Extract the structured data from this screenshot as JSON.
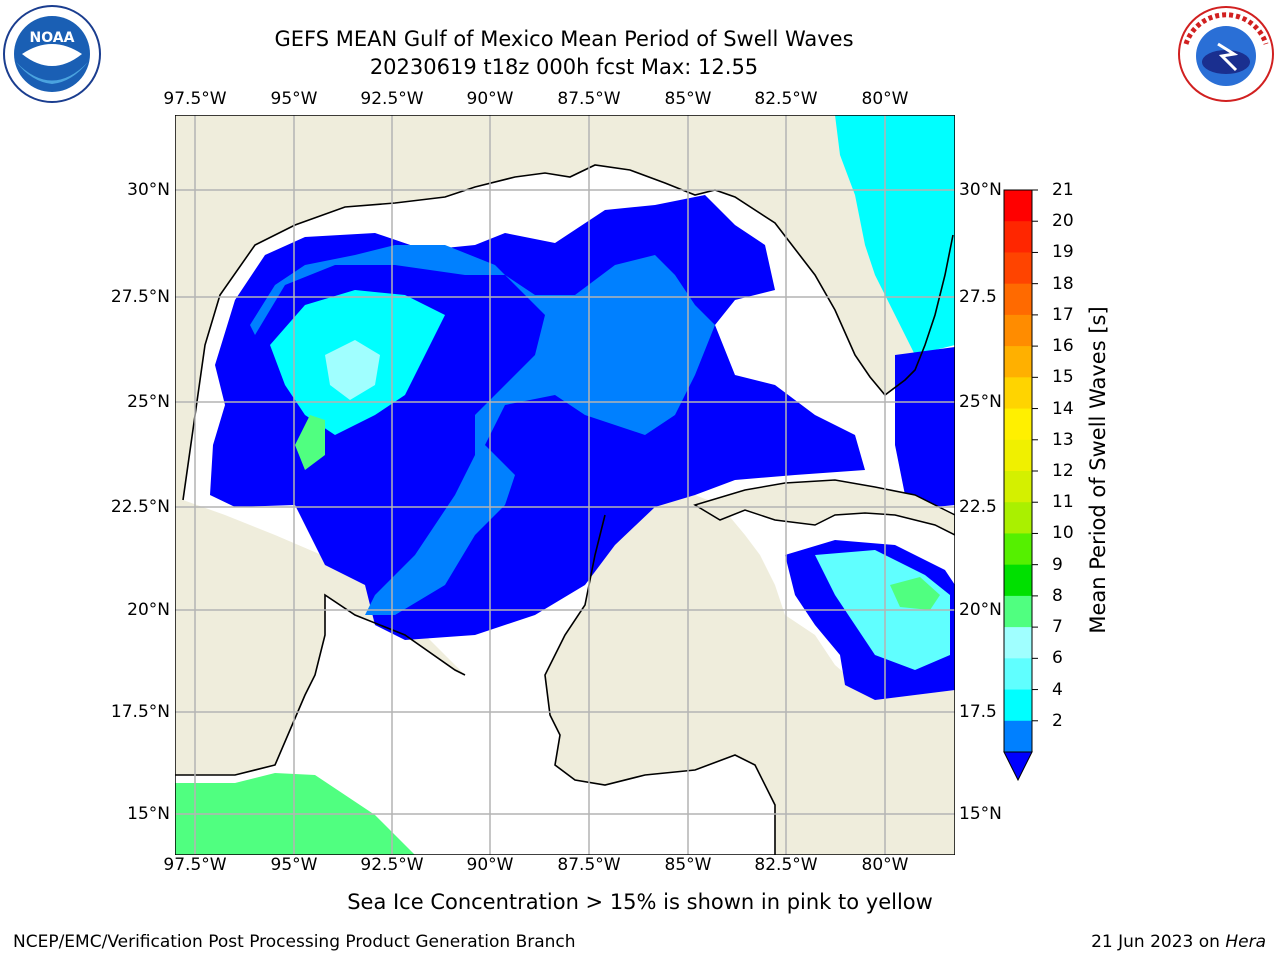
{
  "title": {
    "line1": "GEFS MEAN Gulf of Mexico Mean Period of Swell Waves",
    "line2": "20230619 t18z 000h fcst   Max: 12.55"
  },
  "map": {
    "lon_labels": [
      "97.5°W",
      "95°W",
      "92.5°W",
      "90°W",
      "87.5°W",
      "85°W",
      "82.5°W",
      "80°W"
    ],
    "lat_labels": [
      "30°N",
      "27.5°N",
      "25°N",
      "22.5°N",
      "20°N",
      "17.5°N",
      "15°N"
    ],
    "lat_labels_right": [
      "30°N",
      "27.5",
      "25°N",
      "22.5",
      "20°N",
      "17.5",
      "15°N"
    ],
    "land_color": "#efeddc",
    "ocean_color": "#ffffff",
    "grid_color": "#b4b4b4"
  },
  "colorbar": {
    "label": "Mean Period of Swell Waves [s]",
    "ticks": [
      "21",
      "20",
      "19",
      "18",
      "17",
      "16",
      "15",
      "14",
      "13",
      "12",
      "11",
      "10",
      "9",
      "8",
      "7",
      "6",
      "4",
      "2"
    ],
    "colors": [
      "#ff0000",
      "#ff2600",
      "#ff4400",
      "#ff6a00",
      "#ff8c00",
      "#ffb000",
      "#ffd400",
      "#fff000",
      "#f0f000",
      "#d4f000",
      "#aaf000",
      "#55f000",
      "#00e000",
      "#50ff80",
      "#a0ffff",
      "#60ffff",
      "#00ffff",
      "#0080ff",
      "#0000ff"
    ],
    "extend_color": "#0000ff"
  },
  "note": "Sea Ice Concentration > 15% is shown in pink to yellow",
  "footer": {
    "left": "NCEP/EMC/Verification Post Processing Product Generation Branch",
    "right_date": "21 Jun 2023 on ",
    "right_host": "Hera"
  },
  "logos": {
    "noaa_text": "NOAA",
    "nws_text": "NATIONAL WEATHER SERVICE"
  }
}
